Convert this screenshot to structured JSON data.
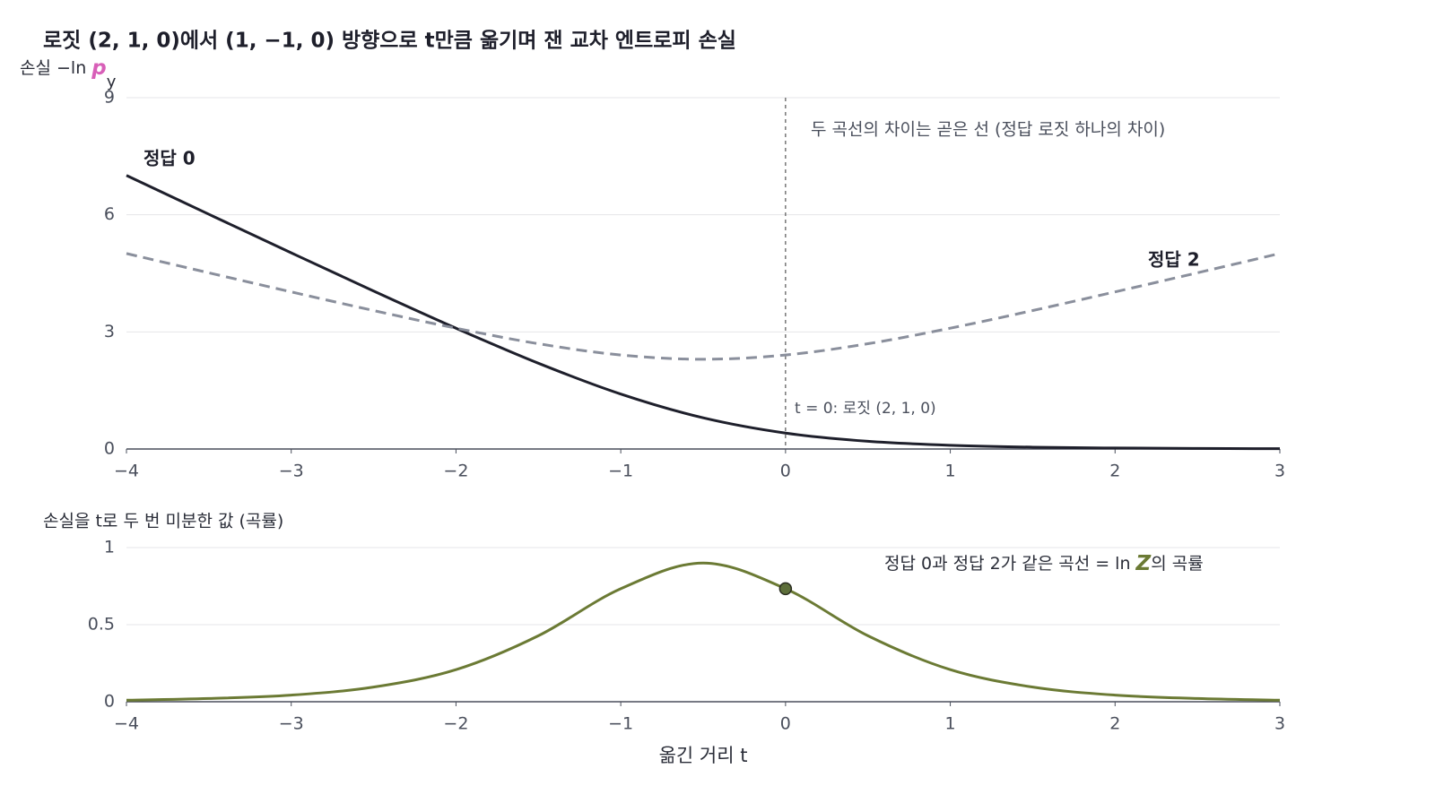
{
  "chart_data": [
    {
      "type": "line",
      "title": "로짓 (2, 1, 0)에서 (1, −1, 0) 방향으로 t만큼 옮기며 잰 교차 엔트로피 손실",
      "y_label": {
        "text": "손실 −ln ",
        "symbol": "p",
        "subscript": "y"
      },
      "x": [
        -4,
        -3.5,
        -3,
        -2.5,
        -2,
        -1.5,
        -1,
        -0.5,
        0,
        0.5,
        1,
        1.5,
        2,
        2.5,
        3
      ],
      "series": [
        {
          "name": "정답 0",
          "color": "#1e1f2b",
          "dash": false,
          "values": [
            7.008,
            6.014,
            5.025,
            4.047,
            3.095,
            2.197,
            1.408,
            0.799,
            0.408,
            0.197,
            0.095,
            0.047,
            0.025,
            0.014,
            0.008
          ]
        },
        {
          "name": "정답 2",
          "color": "#8a8f9c",
          "dash": true,
          "values": [
            5.008,
            4.514,
            4.025,
            3.547,
            3.095,
            2.697,
            2.408,
            2.299,
            2.408,
            2.697,
            3.095,
            3.547,
            4.025,
            4.514,
            5.008
          ]
        }
      ],
      "vline": 0,
      "annotations": [
        "두 곡선의 차이는 곧은 선 (정답 로짓 하나의 차이)",
        "t = 0: 로짓 (2, 1, 0)"
      ],
      "xlim": [
        -4,
        3
      ],
      "xticks": [
        {
          "value": -4,
          "label": "−4"
        },
        {
          "value": -3,
          "label": "−3"
        },
        {
          "value": -2,
          "label": "−2"
        },
        {
          "value": -1,
          "label": "−1"
        },
        0,
        1,
        2,
        3
      ],
      "ylim": [
        0,
        9
      ],
      "yticks": [
        0,
        3,
        6,
        9
      ],
      "grid": true
    },
    {
      "type": "line",
      "y_label": "손실을 t로 두 번 미분한 값 (곡률)",
      "x_label": "옮긴 거리 t",
      "x": [
        -4,
        -3.5,
        -3,
        -2.5,
        -2,
        -1.5,
        -1,
        -0.5,
        0,
        0.5,
        1,
        1.5,
        2,
        2.5,
        3
      ],
      "series": [
        {
          "color": "#6b7a34",
          "dash": false,
          "values": [
            0.01,
            0.021,
            0.043,
            0.095,
            0.208,
            0.428,
            0.733,
            0.9,
            0.733,
            0.428,
            0.208,
            0.095,
            0.043,
            0.021,
            0.01
          ]
        }
      ],
      "marker": {
        "x": 0,
        "y": 0.733,
        "color": "#5d6e3a"
      },
      "annotation": {
        "text": "정답 0과 정답 2가 같은 곡선 = ln ",
        "symbol": "Z",
        "suffix": "의 곡률"
      },
      "xlim": [
        -4,
        3
      ],
      "xticks": [
        {
          "value": -4,
          "label": "−4"
        },
        {
          "value": -3,
          "label": "−3"
        },
        {
          "value": -2,
          "label": "−2"
        },
        {
          "value": -1,
          "label": "−1"
        },
        0,
        1,
        2,
        3
      ],
      "ylim": [
        0,
        1
      ],
      "yticks": [
        0,
        0.5,
        1
      ],
      "grid": true
    }
  ]
}
